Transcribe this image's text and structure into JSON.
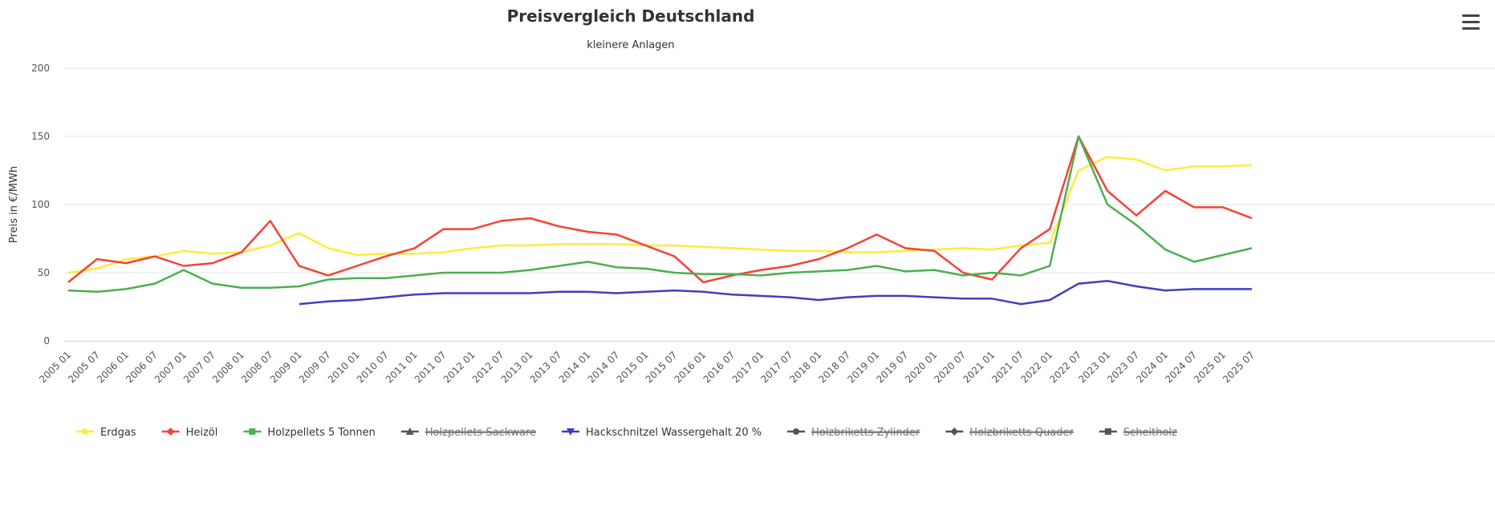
{
  "chart_data": {
    "type": "line",
    "title": "Preisvergleich Deutschland",
    "subtitle": "kleinere Anlagen",
    "y_axis_label": "Preis in €/MWh",
    "categories": [
      "2005 01",
      "2005 07",
      "2006 01",
      "2006 07",
      "2007 01",
      "2007 07",
      "2008 01",
      "2008 07",
      "2009 01",
      "2009 07",
      "2010 01",
      "2010 07",
      "2011 01",
      "2011 07",
      "2012 01",
      "2012 07",
      "2013 01",
      "2013 07",
      "2014 01",
      "2014 07",
      "2015 01",
      "2015 07",
      "2016 01",
      "2016 07",
      "2017 01",
      "2017 07",
      "2018 01",
      "2018 07",
      "2019 01",
      "2019 07",
      "2020 01",
      "2020 07",
      "2021 01",
      "2021 07",
      "2022 01",
      "2022 07",
      "2023 01",
      "2023 07",
      "2024 01",
      "2024 07",
      "2025 01",
      "2025 07"
    ],
    "ylim": [
      0,
      200
    ],
    "yticks": [
      0,
      50,
      100,
      150,
      200
    ],
    "grid": true,
    "legend": "bottom",
    "series": [
      {
        "name": "Erdgas",
        "color": "#ffeb3b",
        "symbol": "circle",
        "visible": true,
        "values": [
          50,
          53,
          60,
          62,
          66,
          64,
          65,
          70,
          79,
          68,
          63,
          64,
          64,
          65,
          68,
          70,
          70,
          71,
          71,
          71,
          70,
          70,
          69,
          68,
          67,
          66,
          66,
          65,
          65,
          66,
          67,
          68,
          67,
          70,
          72,
          125,
          135,
          133,
          125,
          128,
          128,
          129
        ]
      },
      {
        "name": "Heizöl",
        "color": "#f44336",
        "symbol": "diamond",
        "visible": true,
        "values": [
          43,
          60,
          57,
          62,
          55,
          57,
          65,
          88,
          55,
          48,
          55,
          62,
          68,
          82,
          82,
          88,
          90,
          84,
          80,
          78,
          70,
          62,
          43,
          48,
          52,
          55,
          60,
          68,
          78,
          68,
          66,
          50,
          45,
          68,
          82,
          150,
          110,
          92,
          110,
          98,
          98,
          90
        ]
      },
      {
        "name": "Holzpellets 5 Tonnen",
        "color": "#4caf50",
        "symbol": "square",
        "visible": true,
        "values": [
          37,
          36,
          38,
          42,
          52,
          42,
          39,
          39,
          40,
          45,
          46,
          46,
          48,
          50,
          50,
          50,
          52,
          55,
          58,
          54,
          53,
          50,
          49,
          49,
          48,
          50,
          51,
          52,
          55,
          51,
          52,
          48,
          50,
          48,
          55,
          150,
          100,
          85,
          67,
          58,
          63,
          68
        ]
      },
      {
        "name": "Holzpellets Sackware",
        "color": "#555555",
        "symbol": "triangle",
        "visible": false
      },
      {
        "name": "Hackschnitzel Wassergehalt 20 %",
        "color": "#3f3fbf",
        "symbol": "triangle-down",
        "visible": true,
        "values": [
          null,
          null,
          null,
          null,
          null,
          null,
          null,
          null,
          27,
          29,
          30,
          32,
          34,
          35,
          35,
          35,
          35,
          36,
          36,
          35,
          36,
          37,
          36,
          34,
          33,
          32,
          30,
          32,
          33,
          33,
          32,
          31,
          31,
          27,
          30,
          42,
          44,
          40,
          37,
          38,
          38,
          38
        ]
      },
      {
        "name": "Holzbriketts Zylinder",
        "color": "#555555",
        "symbol": "circle",
        "visible": false
      },
      {
        "name": "Holzbriketts Quader",
        "color": "#555555",
        "symbol": "diamond",
        "visible": false
      },
      {
        "name": "Scheitholz",
        "color": "#555555",
        "symbol": "square",
        "visible": false
      }
    ]
  }
}
